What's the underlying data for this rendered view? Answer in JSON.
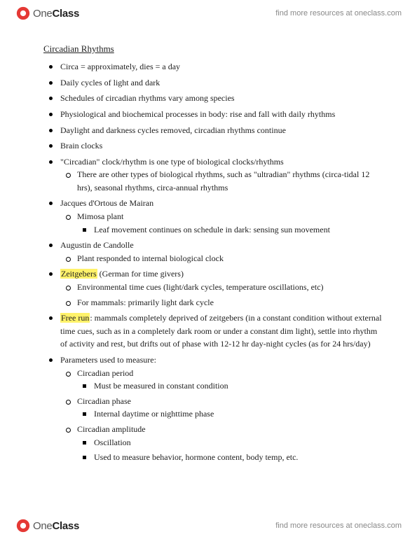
{
  "brand_main": "One",
  "brand_bold": "Class",
  "header_link": "find more resources at oneclass.com",
  "footer_link": "find more resources at oneclass.com",
  "title": "Circadian Rhythms",
  "logo_colors": {
    "outer": "#e53935",
    "inner": "#ffffff"
  },
  "highlight_color": "#fff26a",
  "bullets": [
    {
      "t": "Circa = approximately, dies = a day"
    },
    {
      "t": "Daily cycles of light and dark"
    },
    {
      "t": "Schedules of circadian rhythms vary among species"
    },
    {
      "t": "Physiological and biochemical processes in body: rise and fall with daily rhythms"
    },
    {
      "t": "Daylight and darkness cycles removed, circadian rhythms continue"
    },
    {
      "t": "Brain clocks"
    },
    {
      "t": "\"Circadian\" clock/rhythm is one type of biological clocks/rhythms",
      "c": [
        {
          "t": "There are other types of biological rhythms, such as \"ultradian\" rhythms (circa-tidal 12 hrs), seasonal rhythms, circa-annual rhythms"
        }
      ]
    },
    {
      "t": "Jacques d'Ortous de Mairan",
      "c": [
        {
          "t": "Mimosa plant",
          "c": [
            {
              "t": "Leaf movement continues on schedule in dark: sensing sun movement"
            }
          ]
        }
      ]
    },
    {
      "t": "Augustin de Candolle",
      "c": [
        {
          "t": "Plant responded to internal biological clock"
        }
      ]
    },
    {
      "hl": "Zeitgebers",
      "rest": " (German for time givers)",
      "c": [
        {
          "t": "Environmental time cues (light/dark cycles, temperature oscillations, etc)"
        },
        {
          "t": "For mammals: primarily light dark cycle"
        }
      ]
    },
    {
      "hl": "Free run",
      "rest": ": mammals completely deprived of zeitgebers (in a constant condition without external time cues, such as in a completely dark room or under a constant dim light), settle into rhythm of activity and rest, but drifts out of phase with 12-12 hr day-night cycles (as for 24 hrs/day)"
    },
    {
      "t": "Parameters used to measure:",
      "c": [
        {
          "t": "Circadian period",
          "c": [
            {
              "t": "Must be measured in constant condition"
            }
          ]
        },
        {
          "t": "Circadian phase",
          "c": [
            {
              "t": "Internal daytime or nighttime phase"
            }
          ]
        },
        {
          "t": "Circadian amplitude",
          "c": [
            {
              "t": "Oscillation"
            },
            {
              "t": "Used to measure behavior, hormone content, body temp, etc."
            }
          ]
        }
      ]
    }
  ]
}
